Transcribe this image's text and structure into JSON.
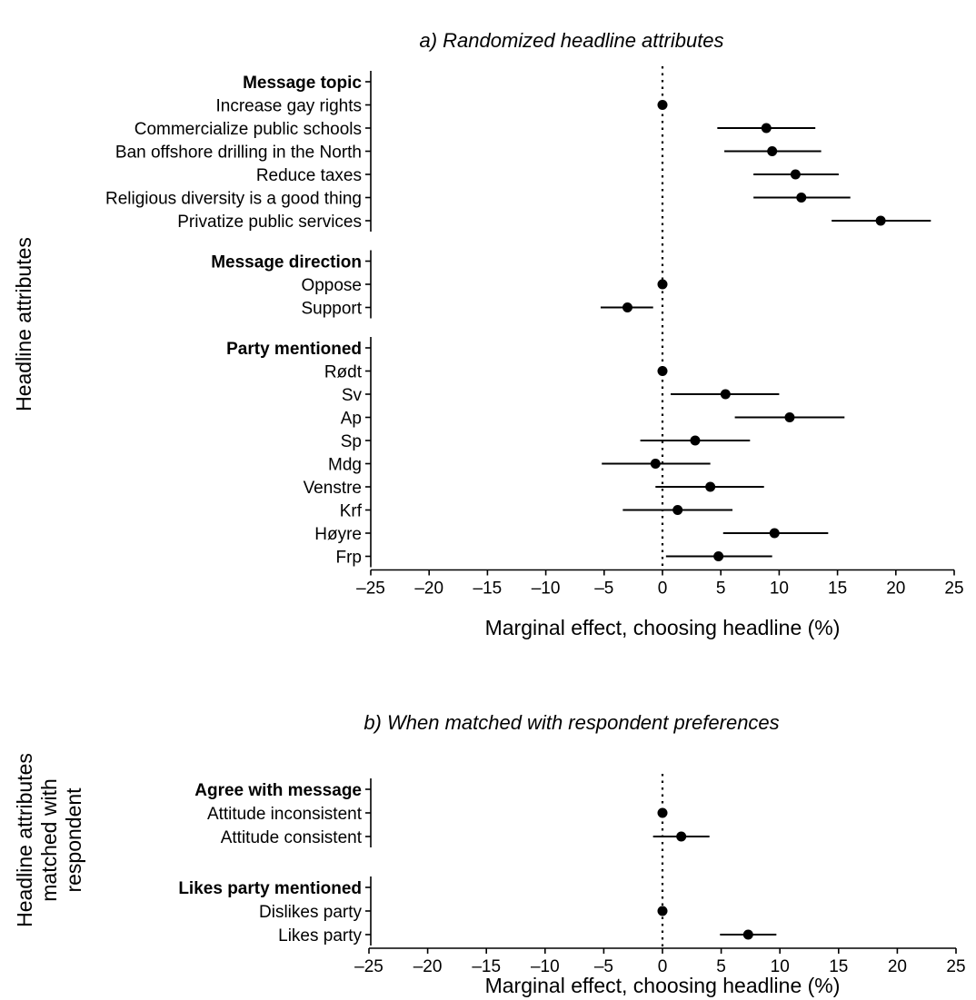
{
  "chart_data": [
    {
      "type": "scatter",
      "subtype": "coefficient-plot-with-confidence-intervals",
      "title": "a) Randomized headline attributes",
      "xlabel": "Marginal effect, choosing headline (%)",
      "ylabel": "Headline attributes",
      "xlim": [
        -25,
        25
      ],
      "xticks": [
        -25,
        -20,
        -15,
        -10,
        -5,
        0,
        5,
        10,
        15,
        20,
        25
      ],
      "xtick_labels": [
        "–25",
        "–20",
        "–15",
        "–10",
        "–5",
        "0",
        "5",
        "10",
        "15",
        "20",
        "25"
      ],
      "reference_line": 0,
      "groups": [
        {
          "header": "Message topic",
          "rows": [
            {
              "label": "Increase gay rights",
              "estimate": 0,
              "lower": 0,
              "upper": 0
            },
            {
              "label": "Commercialize public schools",
              "estimate": 8.9,
              "lower": 4.7,
              "upper": 13.1
            },
            {
              "label": "Ban offshore drilling in the North",
              "estimate": 9.4,
              "lower": 5.3,
              "upper": 13.6
            },
            {
              "label": "Reduce taxes",
              "estimate": 11.4,
              "lower": 7.8,
              "upper": 15.1
            },
            {
              "label": "Religious diversity is a good thing",
              "estimate": 11.9,
              "lower": 7.8,
              "upper": 16.1
            },
            {
              "label": "Privatize public services",
              "estimate": 18.7,
              "lower": 14.5,
              "upper": 23.0
            }
          ]
        },
        {
          "header": "Message direction",
          "rows": [
            {
              "label": "Oppose",
              "estimate": 0,
              "lower": 0,
              "upper": 0
            },
            {
              "label": "Support",
              "estimate": -3.0,
              "lower": -5.3,
              "upper": -0.8
            }
          ]
        },
        {
          "header": "Party mentioned",
          "rows": [
            {
              "label": "Rødt",
              "estimate": 0,
              "lower": 0,
              "upper": 0
            },
            {
              "label": "Sv",
              "estimate": 5.4,
              "lower": 0.7,
              "upper": 10.0
            },
            {
              "label": "Ap",
              "estimate": 10.9,
              "lower": 6.2,
              "upper": 15.6
            },
            {
              "label": "Sp",
              "estimate": 2.8,
              "lower": -1.9,
              "upper": 7.5
            },
            {
              "label": "Mdg",
              "estimate": -0.6,
              "lower": -5.2,
              "upper": 4.1
            },
            {
              "label": "Venstre",
              "estimate": 4.1,
              "lower": -0.6,
              "upper": 8.7
            },
            {
              "label": "Krf",
              "estimate": 1.3,
              "lower": -3.4,
              "upper": 6.0
            },
            {
              "label": "Høyre",
              "estimate": 9.6,
              "lower": 5.2,
              "upper": 14.2
            },
            {
              "label": "Frp",
              "estimate": 4.8,
              "lower": 0.3,
              "upper": 9.4
            }
          ]
        }
      ]
    },
    {
      "type": "scatter",
      "subtype": "coefficient-plot-with-confidence-intervals",
      "title": "b) When matched with respondent preferences",
      "xlabel": "Marginal effect, choosing headline (%)",
      "ylabel": [
        "Headline attributes",
        "matched with",
        "respondent"
      ],
      "xlim": [
        -25,
        25
      ],
      "xticks": [
        -25,
        -20,
        -15,
        -10,
        -5,
        0,
        5,
        10,
        15,
        20,
        25
      ],
      "xtick_labels": [
        "–25",
        "–20",
        "–15",
        "–10",
        "–5",
        "0",
        "5",
        "10",
        "15",
        "20",
        "25"
      ],
      "reference_line": 0,
      "groups": [
        {
          "header": "Agree with message",
          "rows": [
            {
              "label": "Attitude inconsistent",
              "estimate": 0,
              "lower": 0,
              "upper": 0
            },
            {
              "label": "Attitude consistent",
              "estimate": 1.6,
              "lower": -0.8,
              "upper": 4.0
            }
          ]
        },
        {
          "header": "Likes party mentioned",
          "rows": [
            {
              "label": "Dislikes party",
              "estimate": 0,
              "lower": 0,
              "upper": 0
            },
            {
              "label": "Likes party",
              "estimate": 7.3,
              "lower": 4.9,
              "upper": 9.7
            }
          ]
        }
      ]
    }
  ]
}
